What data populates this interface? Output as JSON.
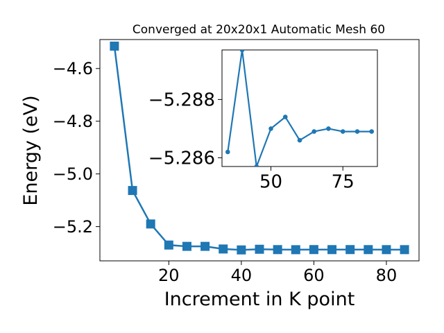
{
  "chart_data": [
    {
      "type": "line",
      "title": "Converged at 20x20x1 Automatic Mesh 60",
      "xlabel": "Increment in K point",
      "ylabel": "Energy (eV)",
      "xlim": [
        1,
        89
      ],
      "ylim": [
        -5.33,
        -4.49
      ],
      "x_ticks": [
        20,
        40,
        60,
        80
      ],
      "y_ticks": [
        -4.6,
        -4.8,
        -5.0,
        -5.2
      ],
      "x_tick_labels": [
        "20",
        "40",
        "60",
        "80"
      ],
      "y_tick_labels": [
        "−4.6",
        "−4.8",
        "−5.0",
        "−5.2"
      ],
      "grid": false,
      "marker": "square",
      "color": "#1f77b4",
      "series": [
        {
          "x": [
            5,
            10,
            15,
            20,
            25,
            30,
            35,
            40,
            45,
            50,
            55,
            60,
            65,
            70,
            75,
            80,
            85
          ],
          "values": [
            -4.515,
            -5.063,
            -5.19,
            -5.27,
            -5.275,
            -5.275,
            -5.285,
            -5.2885,
            -5.286,
            -5.2873,
            -5.2876,
            -5.2872,
            -5.2873,
            -5.2872,
            -5.2873,
            -5.2874,
            -5.2874
          ]
        }
      ]
    },
    {
      "type": "line",
      "title": "",
      "xlabel": "",
      "ylabel": "",
      "xlim": [
        33,
        87
      ],
      "ylim": [
        -5.2857,
        -5.2897
      ],
      "x_ticks": [
        50,
        75
      ],
      "y_ticks": [
        -5.288,
        -5.286
      ],
      "x_tick_labels": [
        "50",
        "75"
      ],
      "y_tick_labels": [
        "−5.288",
        "−5.286"
      ],
      "grid": false,
      "marker": "circle",
      "color": "#1f77b4",
      "series": [
        {
          "x": [
            35,
            40,
            45,
            50,
            55,
            60,
            65,
            70,
            75,
            80,
            85
          ],
          "values": [
            -5.2862,
            -5.2897,
            -5.2857,
            -5.287,
            -5.2874,
            -5.2866,
            -5.2869,
            -5.287,
            -5.2869,
            -5.2869,
            -5.2869
          ]
        }
      ]
    }
  ]
}
